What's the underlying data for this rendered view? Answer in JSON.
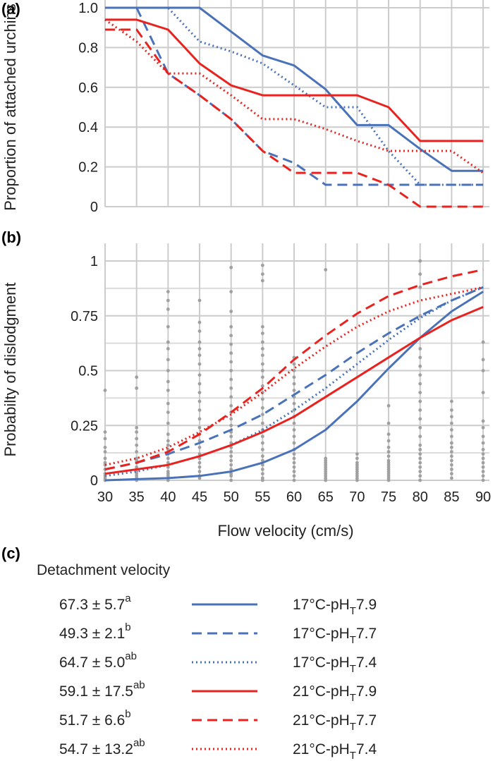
{
  "panels": {
    "a_label": "(a)",
    "b_label": "(b)",
    "c_label": "(c)"
  },
  "colors": {
    "blue": "#4a72b8",
    "red": "#e8231f",
    "grid": "#cccccc",
    "points": "#a0a0a0"
  },
  "chart_data": [
    {
      "type": "line",
      "panel": "(a)",
      "ylabel": "Proportion of attached urchins",
      "xlim": [
        30,
        91
      ],
      "ylim": [
        0,
        1.0
      ],
      "grid": true,
      "y_ticks": [
        "0",
        "0.2",
        "0.4",
        "0.6",
        "0.8",
        "1.0"
      ],
      "x_grid": [
        30,
        35,
        40,
        45,
        50,
        55,
        60,
        65,
        70,
        75,
        80,
        85,
        90
      ],
      "series": [
        {
          "name": "17°C-pHT7.9",
          "color": "#4a72b8",
          "dash": "solid",
          "x": [
            30,
            35,
            40,
            45,
            50,
            55,
            60,
            65,
            70,
            75,
            80,
            85,
            90
          ],
          "y": [
            1.0,
            1.0,
            1.0,
            1.0,
            0.88,
            0.76,
            0.71,
            0.59,
            0.41,
            0.41,
            0.29,
            0.18,
            0.18
          ]
        },
        {
          "name": "17°C-pHT7.7",
          "color": "#4a72b8",
          "dash": "dashed",
          "x": [
            35,
            40,
            45,
            50,
            55,
            60,
            65,
            70,
            75,
            80,
            85,
            90
          ],
          "y": [
            1.0,
            0.67,
            0.56,
            0.44,
            0.28,
            0.22,
            0.11,
            0.11,
            0.11,
            0.11,
            0.11,
            0.11
          ]
        },
        {
          "name": "17°C-pHT7.4",
          "color": "#4a72b8",
          "dash": "dotted",
          "x": [
            30,
            35,
            40,
            45,
            50,
            55,
            60,
            65,
            70,
            75,
            80,
            85,
            90
          ],
          "y": [
            1.0,
            1.0,
            1.0,
            0.83,
            0.78,
            0.72,
            0.61,
            0.5,
            0.5,
            0.28,
            0.11,
            0.11,
            0.11
          ]
        },
        {
          "name": "21°C-pHT7.9",
          "color": "#e8231f",
          "dash": "solid",
          "x": [
            30,
            35,
            40,
            45,
            50,
            55,
            60,
            65,
            70,
            75,
            80,
            85,
            90
          ],
          "y": [
            0.94,
            0.94,
            0.89,
            0.72,
            0.61,
            0.56,
            0.56,
            0.56,
            0.56,
            0.5,
            0.33,
            0.33,
            0.33
          ]
        },
        {
          "name": "21°C-pHT7.7",
          "color": "#e8231f",
          "dash": "dashed",
          "x": [
            30,
            35,
            40,
            45,
            50,
            55,
            60,
            65,
            70,
            75,
            80,
            85,
            90
          ],
          "y": [
            0.89,
            0.89,
            0.67,
            0.56,
            0.44,
            0.28,
            0.17,
            0.17,
            0.17,
            0.11,
            0.0,
            0.0,
            0.0
          ]
        },
        {
          "name": "21°C-pHT7.4",
          "color": "#e8231f",
          "dash": "dotted",
          "x": [
            30,
            35,
            40,
            45,
            50,
            55,
            60,
            65,
            70,
            75,
            80,
            85,
            90
          ],
          "y": [
            0.94,
            0.83,
            0.67,
            0.67,
            0.56,
            0.44,
            0.44,
            0.39,
            0.33,
            0.28,
            0.28,
            0.28,
            0.17
          ]
        }
      ]
    },
    {
      "type": "line",
      "panel": "(b)",
      "ylabel": "Probabilty of dislodgment",
      "xlabel": "Flow velocity (cm/s)",
      "xlim": [
        30,
        91
      ],
      "ylim": [
        0,
        1.0
      ],
      "grid": true,
      "x_ticks": [
        "30",
        "35",
        "40",
        "45",
        "50",
        "55",
        "60",
        "65",
        "70",
        "75",
        "80",
        "85",
        "90"
      ],
      "y_ticks": [
        "0",
        "0.25",
        "0.5",
        "0.75",
        "1"
      ],
      "series": [
        {
          "name": "17°C-pHT7.9",
          "color": "#4a72b8",
          "dash": "solid",
          "x": [
            30,
            35,
            40,
            45,
            50,
            55,
            60,
            65,
            70,
            75,
            80,
            85,
            90
          ],
          "y": [
            0.0,
            0.005,
            0.01,
            0.02,
            0.04,
            0.08,
            0.14,
            0.23,
            0.36,
            0.51,
            0.65,
            0.77,
            0.86
          ]
        },
        {
          "name": "17°C-pHT7.7",
          "color": "#4a72b8",
          "dash": "dashed",
          "x": [
            30,
            35,
            40,
            45,
            50,
            55,
            60,
            65,
            70,
            75,
            80,
            85,
            90
          ],
          "y": [
            0.05,
            0.08,
            0.12,
            0.17,
            0.23,
            0.3,
            0.39,
            0.48,
            0.58,
            0.67,
            0.75,
            0.82,
            0.88
          ]
        },
        {
          "name": "17°C-pHT7.4",
          "color": "#4a72b8",
          "dash": "dotted",
          "x": [
            30,
            35,
            40,
            45,
            50,
            55,
            60,
            65,
            70,
            75,
            80,
            85,
            90
          ],
          "y": [
            0.02,
            0.04,
            0.07,
            0.11,
            0.16,
            0.23,
            0.32,
            0.42,
            0.53,
            0.64,
            0.74,
            0.82,
            0.88
          ]
        },
        {
          "name": "21°C-pHT7.9",
          "color": "#e8231f",
          "dash": "solid",
          "x": [
            30,
            35,
            40,
            45,
            50,
            55,
            60,
            65,
            70,
            75,
            80,
            85,
            90
          ],
          "y": [
            0.03,
            0.05,
            0.07,
            0.11,
            0.16,
            0.22,
            0.29,
            0.38,
            0.47,
            0.56,
            0.65,
            0.73,
            0.79
          ]
        },
        {
          "name": "21°C-pHT7.7",
          "color": "#e8231f",
          "dash": "dashed",
          "x": [
            30,
            35,
            40,
            45,
            50,
            55,
            60,
            65,
            70,
            75,
            80,
            85,
            90
          ],
          "y": [
            0.05,
            0.08,
            0.13,
            0.21,
            0.31,
            0.42,
            0.55,
            0.66,
            0.76,
            0.84,
            0.89,
            0.93,
            0.96
          ]
        },
        {
          "name": "21°C-pHT7.4",
          "color": "#e8231f",
          "dash": "dotted",
          "x": [
            30,
            35,
            40,
            45,
            50,
            55,
            60,
            65,
            70,
            75,
            80,
            85,
            90
          ],
          "y": [
            0.07,
            0.1,
            0.15,
            0.22,
            0.3,
            0.4,
            0.51,
            0.61,
            0.7,
            0.77,
            0.82,
            0.85,
            0.88
          ]
        }
      ],
      "points": [
        {
          "x": 30,
          "y": [
            0.0,
            0.01,
            0.02,
            0.03,
            0.05,
            0.07,
            0.08,
            0.1,
            0.13,
            0.15,
            0.19,
            0.22,
            0.41
          ]
        },
        {
          "x": 35,
          "y": [
            0.0,
            0.01,
            0.02,
            0.03,
            0.04,
            0.05,
            0.06,
            0.08,
            0.09,
            0.1,
            0.13,
            0.16,
            0.19,
            0.22,
            0.24,
            0.42,
            0.47
          ]
        },
        {
          "x": 40,
          "y": [
            0.0,
            0.02,
            0.03,
            0.04,
            0.06,
            0.08,
            0.1,
            0.12,
            0.14,
            0.16,
            0.18,
            0.21,
            0.26,
            0.31,
            0.35,
            0.41,
            0.45,
            0.5,
            0.55,
            0.6,
            0.63,
            0.7,
            0.78,
            0.82,
            0.86
          ]
        },
        {
          "x": 45,
          "y": [
            0.01,
            0.02,
            0.04,
            0.06,
            0.08,
            0.1,
            0.12,
            0.15,
            0.18,
            0.21,
            0.24,
            0.28,
            0.32,
            0.36,
            0.4,
            0.44,
            0.48,
            0.53,
            0.57,
            0.6,
            0.63,
            0.68,
            0.72,
            0.82
          ]
        },
        {
          "x": 50,
          "y": [
            0.0,
            0.02,
            0.03,
            0.05,
            0.07,
            0.09,
            0.11,
            0.13,
            0.15,
            0.17,
            0.2,
            0.22,
            0.25,
            0.28,
            0.31,
            0.34,
            0.38,
            0.42,
            0.46,
            0.5,
            0.54,
            0.58,
            0.62,
            0.66,
            0.7,
            0.77,
            0.86,
            0.97
          ]
        },
        {
          "x": 55,
          "y": [
            0.0,
            0.01,
            0.03,
            0.05,
            0.07,
            0.09,
            0.11,
            0.14,
            0.17,
            0.2,
            0.23,
            0.26,
            0.3,
            0.33,
            0.37,
            0.4,
            0.43,
            0.47,
            0.5,
            0.53,
            0.57,
            0.6,
            0.63,
            0.67,
            0.7,
            0.91,
            0.94,
            0.98
          ]
        },
        {
          "x": 60,
          "y": [
            0.0,
            0.02,
            0.04,
            0.06,
            0.08,
            0.1,
            0.12,
            0.14,
            0.17,
            0.2,
            0.23,
            0.26,
            0.29,
            0.32,
            0.35,
            0.38,
            0.41,
            0.44,
            0.47,
            0.5,
            0.53,
            0.56
          ]
        },
        {
          "x": 65,
          "y": [
            0.0,
            0.01,
            0.02,
            0.03,
            0.04,
            0.05,
            0.06,
            0.07,
            0.08,
            0.09,
            0.1,
            0.96
          ]
        },
        {
          "x": 70,
          "y": [
            0.0,
            0.01,
            0.02,
            0.03,
            0.04,
            0.05,
            0.06,
            0.07,
            0.08,
            0.1,
            0.12
          ]
        },
        {
          "x": 75,
          "y": [
            0.0,
            0.01,
            0.02,
            0.03,
            0.04,
            0.05,
            0.06,
            0.07,
            0.08,
            0.09,
            0.11,
            0.13,
            0.15,
            0.18,
            0.21,
            0.26,
            0.34
          ]
        },
        {
          "x": 80,
          "y": [
            0.0,
            0.02,
            0.04,
            0.06,
            0.08,
            0.1,
            0.12,
            0.14,
            0.16,
            0.2,
            0.24,
            0.28,
            0.32,
            0.36,
            0.4,
            0.44,
            0.48,
            0.52,
            0.56,
            0.6,
            0.75,
            0.88,
            0.94,
            1.0
          ]
        },
        {
          "x": 85,
          "y": [
            0.01,
            0.03,
            0.05,
            0.07,
            0.09,
            0.11,
            0.13,
            0.15,
            0.17,
            0.2,
            0.23,
            0.26,
            0.29,
            0.32,
            0.36
          ]
        },
        {
          "x": 90,
          "y": [
            0.0,
            0.02,
            0.04,
            0.06,
            0.08,
            0.1,
            0.12,
            0.14,
            0.17,
            0.2,
            0.24,
            0.27,
            0.4,
            0.5,
            0.55,
            0.63
          ]
        }
      ]
    }
  ],
  "legend": {
    "header": "Detachment velocity",
    "rows": [
      {
        "value": "67.3 ± 5.7",
        "sup": "a",
        "temp": "17°C-pH",
        "sub": "T",
        "ph": "7.9",
        "color": "#4a72b8",
        "dash": "solid"
      },
      {
        "value": "49.3 ± 2.1",
        "sup": "b",
        "temp": "17°C-pH",
        "sub": "T",
        "ph": "7.7",
        "color": "#4a72b8",
        "dash": "dashed"
      },
      {
        "value": "64.7 ± 5.0",
        "sup": "ab",
        "temp": "17°C-pH",
        "sub": "T",
        "ph": "7.4",
        "color": "#4a72b8",
        "dash": "dotted"
      },
      {
        "value": "59.1 ± 17.5",
        "sup": "ab",
        "temp": "21°C-pH",
        "sub": "T",
        "ph": "7.9",
        "color": "#e8231f",
        "dash": "solid"
      },
      {
        "value": "51.7 ± 6.6",
        "sup": "b",
        "temp": "21°C-pH",
        "sub": "T",
        "ph": "7.7",
        "color": "#e8231f",
        "dash": "dashed"
      },
      {
        "value": "54.7 ± 13.2",
        "sup": "ab",
        "temp": "21°C-pH",
        "sub": "T",
        "ph": "7.4",
        "color": "#e8231f",
        "dash": "dotted"
      }
    ]
  }
}
